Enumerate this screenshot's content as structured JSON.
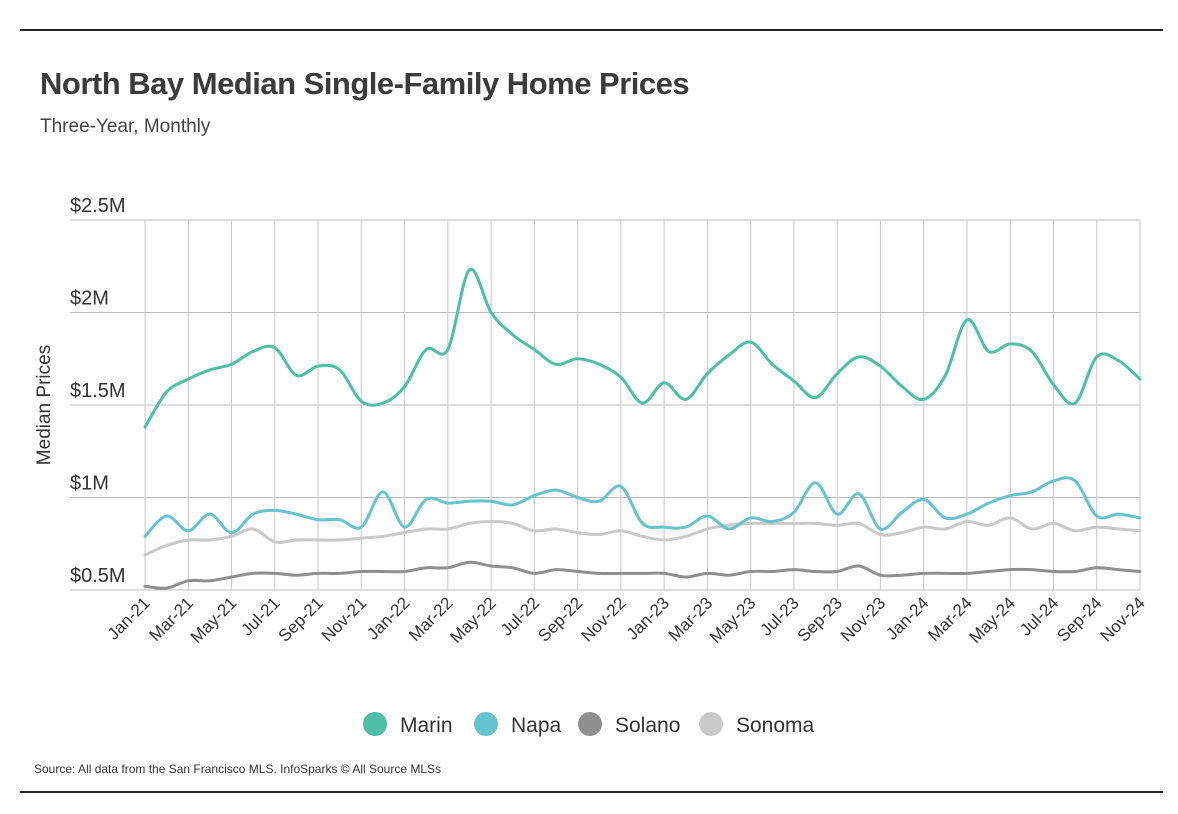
{
  "header": {
    "title": "North Bay Median Single-Family Home Prices",
    "subtitle": "Three-Year, Monthly"
  },
  "footer": {
    "source": "Source:  All data from the San Francisco MLS. InfoSparks © All Source MLSs"
  },
  "chart_data": {
    "type": "line",
    "ylabel": "Median Prices",
    "ylim": [
      500000,
      2500000
    ],
    "y_ticks": [
      {
        "value": 500000,
        "label": "$0.5M"
      },
      {
        "value": 1000000,
        "label": "$1M"
      },
      {
        "value": 1500000,
        "label": "$1.5M"
      },
      {
        "value": 2000000,
        "label": "$2M"
      },
      {
        "value": 2500000,
        "label": "$2.5M"
      }
    ],
    "x": [
      "Jan-21",
      "Feb-21",
      "Mar-21",
      "Apr-21",
      "May-21",
      "Jun-21",
      "Jul-21",
      "Aug-21",
      "Sep-21",
      "Oct-21",
      "Nov-21",
      "Dec-21",
      "Jan-22",
      "Feb-22",
      "Mar-22",
      "Apr-22",
      "May-22",
      "Jun-22",
      "Jul-22",
      "Aug-22",
      "Sep-22",
      "Oct-22",
      "Nov-22",
      "Dec-22",
      "Jan-23",
      "Feb-23",
      "Mar-23",
      "Apr-23",
      "May-23",
      "Jun-23",
      "Jul-23",
      "Aug-23",
      "Sep-23",
      "Oct-23",
      "Nov-23",
      "Dec-23",
      "Jan-24",
      "Feb-24",
      "Mar-24",
      "Apr-24",
      "May-24",
      "Jun-24",
      "Jul-24",
      "Aug-24",
      "Sep-24",
      "Oct-24",
      "Nov-24"
    ],
    "x_tick_labels": [
      "Jan-21",
      "Mar-21",
      "May-21",
      "Jul-21",
      "Sep-21",
      "Nov-21",
      "Jan-22",
      "Mar-22",
      "May-22",
      "Jul-22",
      "Sep-22",
      "Nov-22",
      "Jan-23",
      "Mar-23",
      "May-23",
      "Jul-23",
      "Sep-23",
      "Nov-23",
      "Jan-24",
      "Mar-24",
      "May-24",
      "Jul-24",
      "Sep-24",
      "Nov-24"
    ],
    "grid": true,
    "legend_position": "bottom-center",
    "series": [
      {
        "name": "Marin",
        "color": "#4dbfa8",
        "values": [
          1380000,
          1570000,
          1640000,
          1690000,
          1720000,
          1790000,
          1810000,
          1660000,
          1710000,
          1690000,
          1520000,
          1510000,
          1600000,
          1800000,
          1800000,
          2230000,
          2000000,
          1880000,
          1800000,
          1720000,
          1750000,
          1720000,
          1650000,
          1510000,
          1620000,
          1530000,
          1670000,
          1770000,
          1840000,
          1720000,
          1630000,
          1540000,
          1670000,
          1760000,
          1710000,
          1600000,
          1530000,
          1660000,
          1960000,
          1790000,
          1830000,
          1790000,
          1610000,
          1510000,
          1760000,
          1740000,
          1640000
        ]
      },
      {
        "name": "Napa",
        "color": "#65c3cf",
        "values": [
          790000,
          900000,
          820000,
          910000,
          810000,
          910000,
          930000,
          910000,
          880000,
          880000,
          840000,
          1030000,
          840000,
          990000,
          970000,
          980000,
          980000,
          960000,
          1010000,
          1040000,
          1000000,
          980000,
          1060000,
          860000,
          840000,
          840000,
          900000,
          830000,
          890000,
          870000,
          920000,
          1080000,
          910000,
          1020000,
          830000,
          920000,
          990000,
          890000,
          910000,
          970000,
          1010000,
          1030000,
          1090000,
          1090000,
          900000,
          910000,
          890000
        ],
        "annotation": ""
      },
      {
        "name": "Solano",
        "color": "#8f8f8f",
        "values": [
          520000,
          510000,
          550000,
          550000,
          570000,
          590000,
          590000,
          580000,
          590000,
          590000,
          600000,
          600000,
          600000,
          620000,
          620000,
          650000,
          630000,
          620000,
          590000,
          610000,
          600000,
          590000,
          590000,
          590000,
          590000,
          570000,
          590000,
          580000,
          600000,
          600000,
          610000,
          600000,
          600000,
          630000,
          580000,
          580000,
          590000,
          590000,
          590000,
          600000,
          610000,
          610000,
          600000,
          600000,
          620000,
          610000,
          600000
        ]
      },
      {
        "name": "Sonoma",
        "color": "#c9c9c9",
        "values": [
          690000,
          740000,
          770000,
          770000,
          790000,
          830000,
          760000,
          770000,
          770000,
          770000,
          780000,
          790000,
          810000,
          830000,
          830000,
          860000,
          870000,
          860000,
          820000,
          830000,
          810000,
          800000,
          820000,
          790000,
          770000,
          790000,
          830000,
          850000,
          860000,
          860000,
          860000,
          860000,
          850000,
          860000,
          800000,
          810000,
          840000,
          830000,
          870000,
          850000,
          890000,
          830000,
          860000,
          820000,
          840000,
          830000,
          820000
        ]
      }
    ]
  }
}
